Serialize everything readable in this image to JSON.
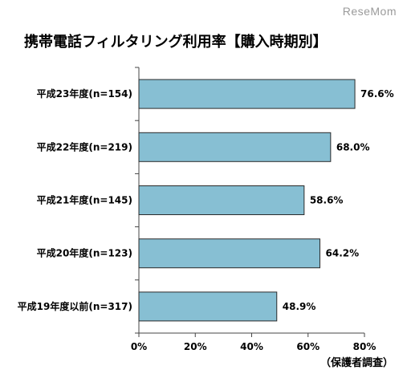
{
  "watermark": "ReseMom",
  "title": "携帯電話フィルタリング利用率【購入時期別】",
  "source": "（保護者調査）",
  "colors": {
    "bar_fill": "#87bfd3",
    "bar_stroke": "#2b2b2b",
    "axis": "#444444"
  },
  "chart_data": {
    "type": "bar",
    "orientation": "horizontal",
    "categories": [
      "平成23年度(n=154)",
      "平成22年度(n=219)",
      "平成21年度(n=145)",
      "平成20年度(n=123)",
      "平成19年度以前(n=317)"
    ],
    "values": [
      76.6,
      68.0,
      58.6,
      64.2,
      48.9
    ],
    "value_labels": [
      "76.6%",
      "68.0%",
      "58.6%",
      "64.2%",
      "48.9%"
    ],
    "xlim": [
      0,
      80
    ],
    "xticks": [
      0,
      20,
      40,
      60,
      80
    ],
    "xtick_labels": [
      "0%",
      "20%",
      "40%",
      "60%",
      "80%"
    ],
    "grid": false
  }
}
